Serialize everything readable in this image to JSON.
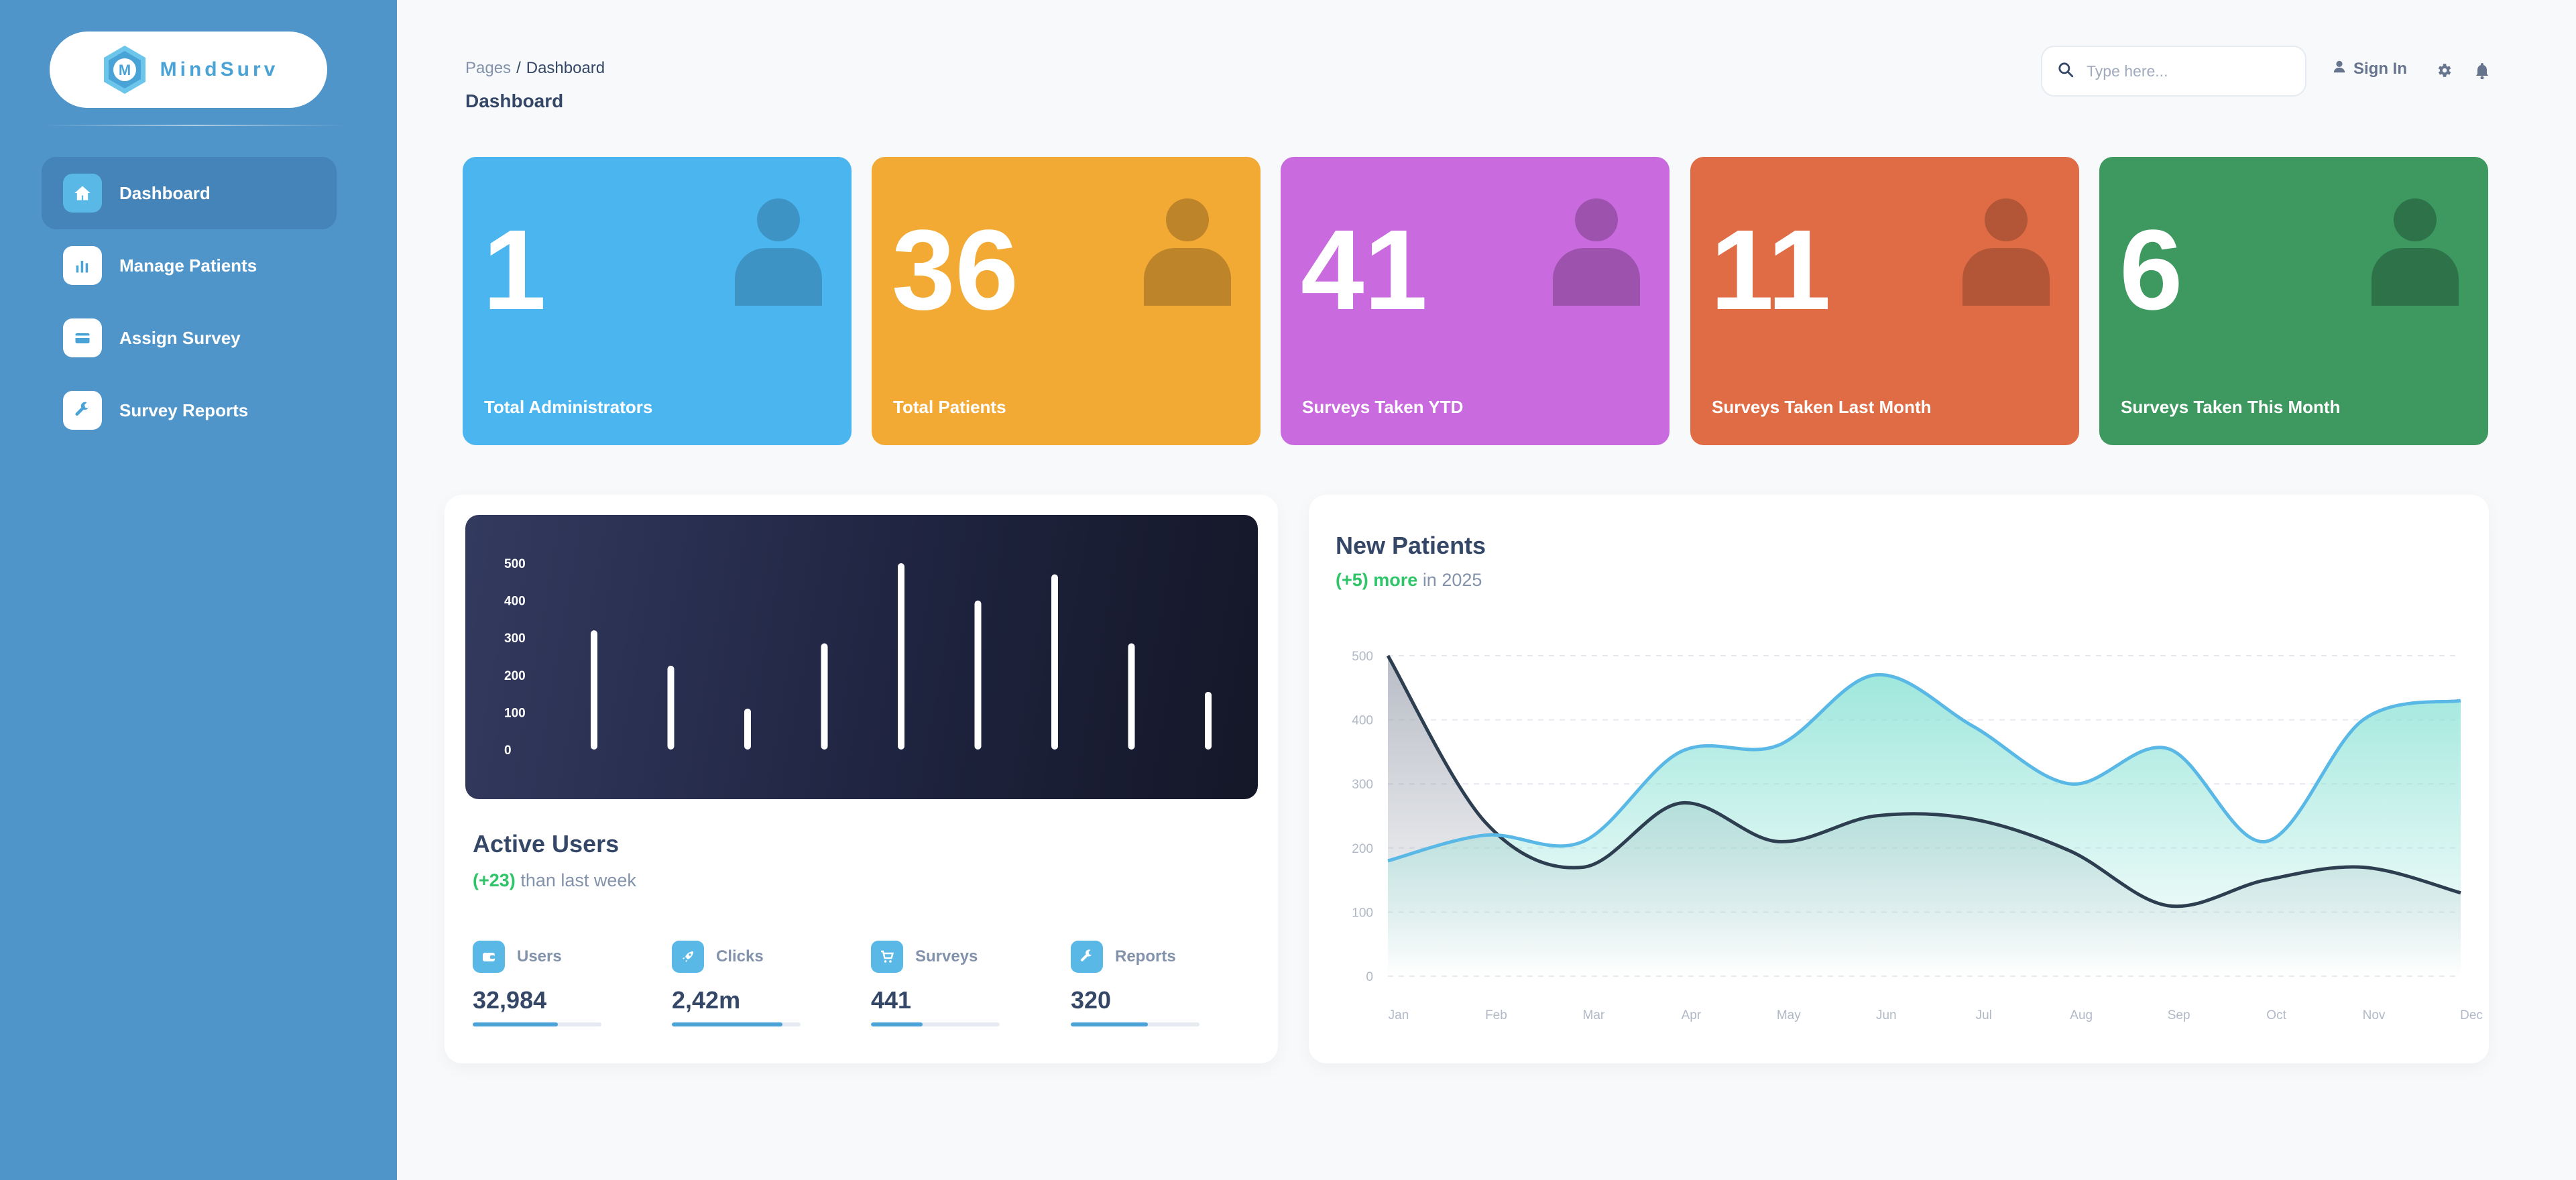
{
  "brand": {
    "name": "MindSurv"
  },
  "sidebar": {
    "items": [
      {
        "label": "Dashboard",
        "icon": "home-icon"
      },
      {
        "label": "Manage Patients",
        "icon": "bar-chart-icon"
      },
      {
        "label": "Assign Survey",
        "icon": "credit-card-icon"
      },
      {
        "label": "Survey Reports",
        "icon": "wrench-icon"
      }
    ]
  },
  "header": {
    "breadcrumb_root": "Pages",
    "breadcrumb_sep": "/",
    "breadcrumb_current": "Dashboard",
    "title": "Dashboard",
    "search_placeholder": "Type here...",
    "signin_label": "Sign In"
  },
  "stats": [
    {
      "value": "1",
      "label": "Total Administrators",
      "color": "#4bb5ef"
    },
    {
      "value": "36",
      "label": "Total Patients",
      "color": "#f2aa35"
    },
    {
      "value": "41",
      "label": "Surveys Taken YTD",
      "color": "#c96ade"
    },
    {
      "value": "11",
      "label": "Surveys Taken Last Month",
      "color": "#e06c45"
    },
    {
      "value": "6",
      "label": "Surveys Taken This  Month",
      "color": "#3d9960"
    }
  ],
  "active_users": {
    "title": "Active Users",
    "delta": "(+23)",
    "delta_text": "than last week",
    "metrics": [
      {
        "label": "Users",
        "value": "32,984",
        "progress": 0.66,
        "icon": "wallet-icon"
      },
      {
        "label": "Clicks",
        "value": "2,42m",
        "progress": 0.86,
        "icon": "rocket-icon"
      },
      {
        "label": "Surveys",
        "value": "441",
        "progress": 0.4,
        "icon": "cart-icon"
      },
      {
        "label": "Reports",
        "value": "320",
        "progress": 0.6,
        "icon": "wrench-icon"
      }
    ]
  },
  "new_patients": {
    "title": "New Patients",
    "delta": "(+5) more",
    "delta_text": "in 2025"
  },
  "chart_data": [
    {
      "type": "bar",
      "yticks": [
        "500",
        "400",
        "300",
        "200",
        "100",
        "0"
      ],
      "ylim": [
        0,
        500
      ],
      "values": [
        320,
        225,
        110,
        285,
        500,
        400,
        470,
        285,
        155
      ],
      "grid": false,
      "color": "#ffffff"
    },
    {
      "type": "area",
      "categories": [
        "Jan",
        "Feb",
        "Mar",
        "Apr",
        "May",
        "Jun",
        "Jul",
        "Aug",
        "Sep",
        "Oct",
        "Nov",
        "Dec"
      ],
      "yticks": [
        "500",
        "400",
        "300",
        "200",
        "100",
        "0"
      ],
      "ylim": [
        0,
        500
      ],
      "grid": true,
      "series": [
        {
          "values": [
            180,
            220,
            210,
            350,
            360,
            470,
            390,
            300,
            355,
            210,
            400,
            430
          ],
          "color": "#5ab8e6",
          "fill": "#8ee3d6"
        },
        {
          "values": [
            500,
            240,
            170,
            270,
            210,
            250,
            245,
            195,
            110,
            150,
            170,
            130
          ],
          "color": "#2d3e50",
          "fill": "#9aa0ad"
        }
      ]
    }
  ]
}
